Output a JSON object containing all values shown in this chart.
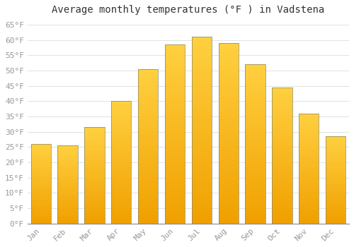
{
  "title": "Average monthly temperatures (°F ) in Vadstena",
  "months": [
    "Jan",
    "Feb",
    "Mar",
    "Apr",
    "May",
    "Jun",
    "Jul",
    "Aug",
    "Sep",
    "Oct",
    "Nov",
    "Dec"
  ],
  "values": [
    26,
    25.5,
    31.5,
    40,
    50.5,
    58.5,
    61,
    59,
    52,
    44.5,
    36,
    28.5
  ],
  "bar_color_top": "#FFD040",
  "bar_color_bottom": "#F0A000",
  "bar_edge_color": "#888866",
  "background_color": "#FFFFFF",
  "grid_color": "#DDDDDD",
  "text_color": "#999999",
  "ylim": [
    0,
    67
  ],
  "yticks": [
    0,
    5,
    10,
    15,
    20,
    25,
    30,
    35,
    40,
    45,
    50,
    55,
    60,
    65
  ],
  "title_fontsize": 10,
  "tick_fontsize": 8,
  "bar_width": 0.75
}
